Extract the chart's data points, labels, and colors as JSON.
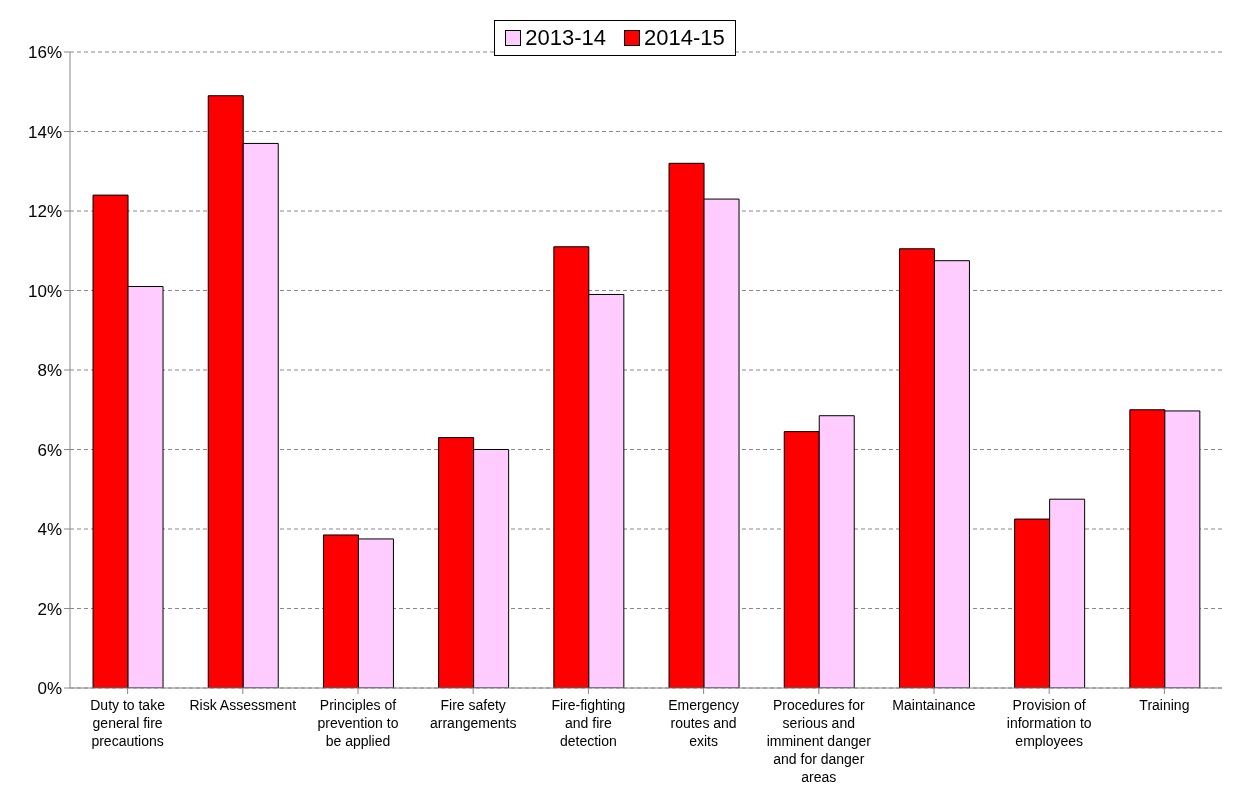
{
  "chart_data": {
    "type": "bar",
    "categories": [
      "Duty to take general fire precautions",
      "Risk Assessment",
      "Principles of prevention to be applied",
      "Fire safety arrangements",
      "Fire-fighting and fire detection",
      "Emergency routes and exits",
      "Procedures for serious and imminent danger and for danger areas",
      "Maintainance",
      "Provision of information to employees",
      "Training"
    ],
    "series": [
      {
        "name": "2014-15",
        "color": "#ff0000",
        "values": [
          12.4,
          14.9,
          3.85,
          6.3,
          11.1,
          13.2,
          6.45,
          11.05,
          4.25,
          7.0
        ]
      },
      {
        "name": "2013-14",
        "color": "#ffccff",
        "values": [
          10.1,
          13.7,
          3.75,
          6.0,
          9.9,
          12.3,
          6.85,
          10.75,
          4.75,
          6.97
        ]
      }
    ],
    "ylim": [
      0,
      16
    ],
    "yticks": [
      {
        "value": 0,
        "label": "0%"
      },
      {
        "value": 2,
        "label": "2%"
      },
      {
        "value": 4,
        "label": "4%"
      },
      {
        "value": 6,
        "label": "6%"
      },
      {
        "value": 8,
        "label": "8%"
      },
      {
        "value": 10,
        "label": "10%"
      },
      {
        "value": 12,
        "label": "12%"
      },
      {
        "value": 14,
        "label": "14%"
      },
      {
        "value": 16,
        "label": "16%"
      }
    ],
    "grid": "y",
    "legend": "top"
  }
}
